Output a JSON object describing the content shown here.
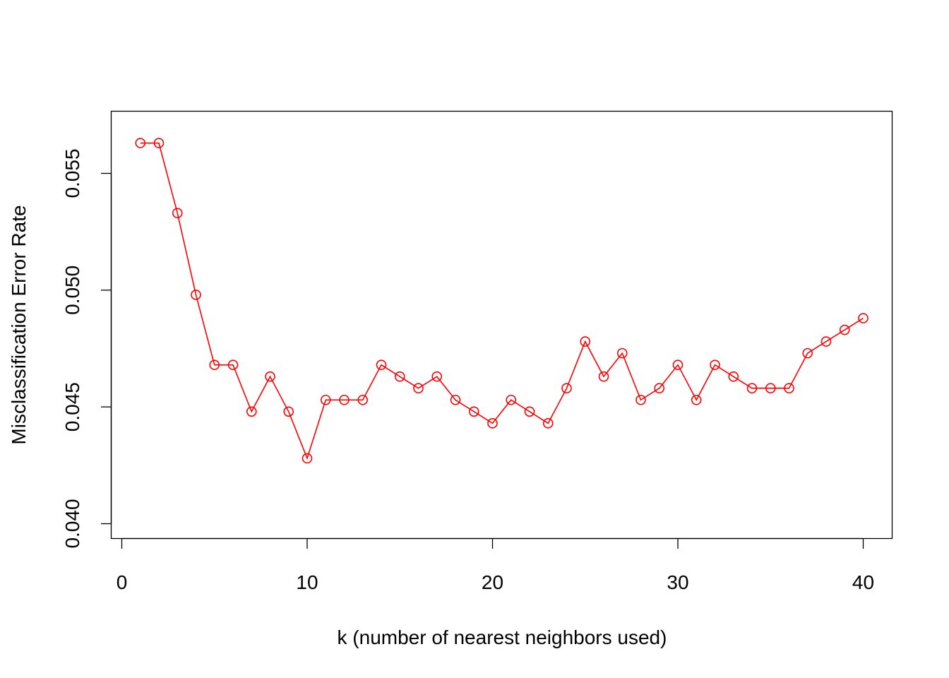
{
  "chart_data": {
    "type": "line",
    "xlabel": "k (number of nearest neighbors used)",
    "ylabel": "Misclassification Error Rate",
    "xlim": [
      0,
      40
    ],
    "ylim": [
      0.04,
      0.055
    ],
    "x_ticks": [
      "0",
      "10",
      "20",
      "30",
      "40"
    ],
    "y_ticks": [
      "0.040",
      "0.045",
      "0.050",
      "0.055"
    ],
    "x": [
      1,
      2,
      3,
      4,
      5,
      6,
      7,
      8,
      9,
      10,
      11,
      12,
      13,
      14,
      15,
      16,
      17,
      18,
      19,
      20,
      21,
      22,
      23,
      24,
      25,
      26,
      27,
      28,
      29,
      30,
      31,
      32,
      33,
      34,
      35,
      36,
      37,
      38,
      39,
      40
    ],
    "series": [
      {
        "values": [
          0.0563,
          0.0563,
          0.0533,
          0.0498,
          0.0468,
          0.0468,
          0.0448,
          0.0463,
          0.0448,
          0.0428,
          0.0453,
          0.0453,
          0.0453,
          0.0468,
          0.0463,
          0.0458,
          0.0463,
          0.0453,
          0.0448,
          0.0443,
          0.0453,
          0.0448,
          0.0443,
          0.0458,
          0.0478,
          0.0463,
          0.0473,
          0.0453,
          0.0458,
          0.0468,
          0.0453,
          0.0468,
          0.0463,
          0.0458,
          0.0458,
          0.0458,
          0.0473,
          0.0478,
          0.0483,
          0.0488
        ],
        "color": "#ff0000"
      }
    ],
    "marker": "open-circle",
    "grid": false,
    "legend": "none"
  }
}
